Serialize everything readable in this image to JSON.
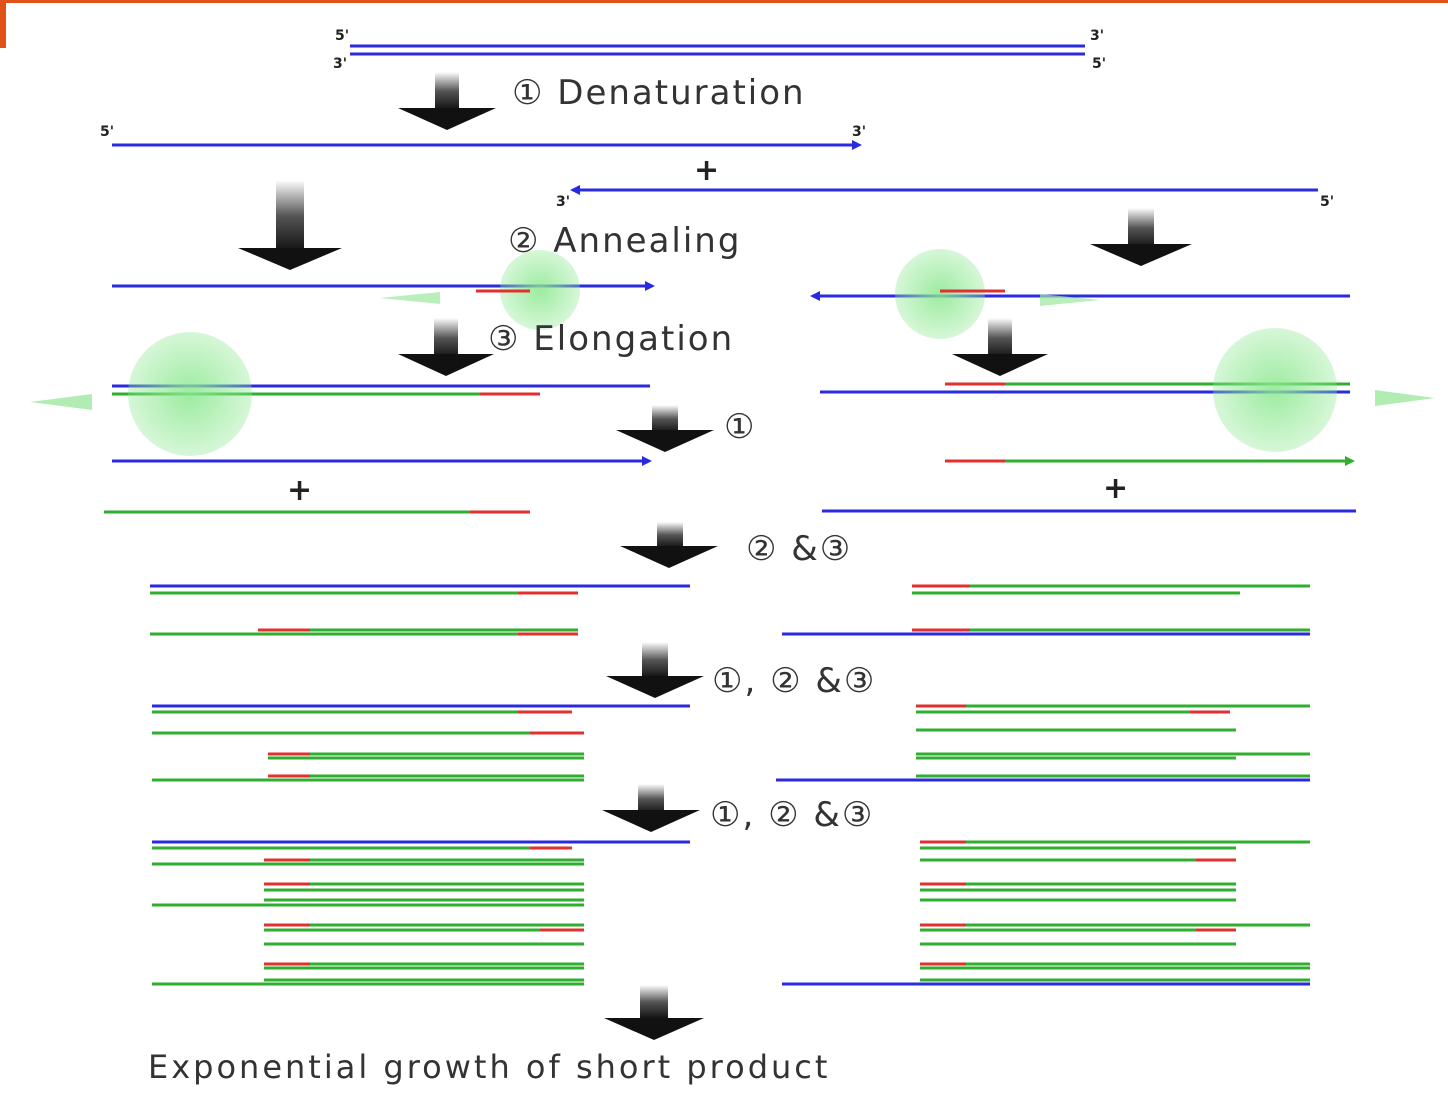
{
  "colors": {
    "template_strand": "#2a2ae0",
    "new_strand": "#2fae2f",
    "primer": "#e03030",
    "polymerase": "#77e07e",
    "arrow": "#111111",
    "accent": "#e0521a"
  },
  "labels": {
    "denaturation": "① Denaturation",
    "annealing": "② Annealing",
    "elongation": "③ Elongation",
    "cycle1": "①",
    "cycle23": "② &③",
    "cycle123a": "①, ② &③",
    "cycle123b": "①, ② &③",
    "final": "Exponential growth of short product",
    "plus": "+",
    "five_prime": "5'",
    "three_prime": "3'"
  }
}
